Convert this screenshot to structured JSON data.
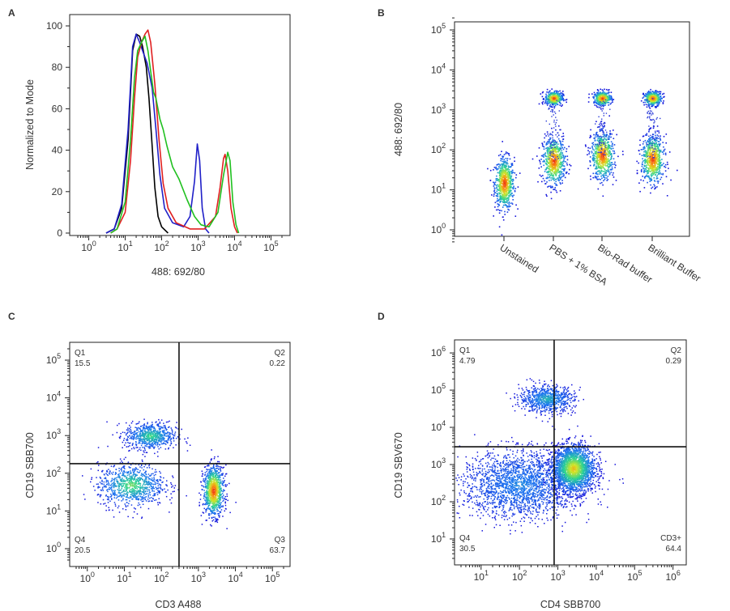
{
  "panel_labels": {
    "a": "A",
    "b": "B",
    "c": "C",
    "d": "D"
  },
  "chart_data": [
    {
      "panel": "A",
      "type": "line",
      "xlabel": "488: 692/80",
      "ylabel": "Normalized to Mode",
      "xscale": "log",
      "xlim": [
        0.5,
        200000
      ],
      "ylim": [
        0,
        100
      ],
      "y_ticks": [
        "0",
        "20",
        "40",
        "60",
        "80",
        "100"
      ],
      "x_ticks": [
        "10^0",
        "10^1",
        "10^2",
        "10^3",
        "10^4",
        "10^5"
      ],
      "grid": false,
      "legend": "none",
      "series": [
        {
          "color": "#000000",
          "points": [
            [
              3,
              0
            ],
            [
              5,
              2
            ],
            [
              8,
              12
            ],
            [
              12,
              45
            ],
            [
              16,
              88
            ],
            [
              20,
              96
            ],
            [
              25,
              95
            ],
            [
              30,
              90
            ],
            [
              38,
              80
            ],
            [
              45,
              65
            ],
            [
              55,
              42
            ],
            [
              65,
              22
            ],
            [
              80,
              8
            ],
            [
              100,
              3
            ],
            [
              150,
              0
            ]
          ]
        },
        {
          "color": "#2020c8",
          "points": [
            [
              3,
              0
            ],
            [
              5,
              2
            ],
            [
              8,
              14
            ],
            [
              12,
              50
            ],
            [
              16,
              90
            ],
            [
              20,
              96
            ],
            [
              25,
              92
            ],
            [
              30,
              88
            ],
            [
              40,
              82
            ],
            [
              55,
              70
            ],
            [
              70,
              50
            ],
            [
              90,
              28
            ],
            [
              120,
              12
            ],
            [
              200,
              5
            ],
            [
              400,
              3
            ],
            [
              600,
              8
            ],
            [
              800,
              25
            ],
            [
              950,
              43
            ],
            [
              1100,
              35
            ],
            [
              1300,
              12
            ],
            [
              1600,
              2
            ],
            [
              2000,
              0
            ]
          ]
        },
        {
          "color": "#e02020",
          "points": [
            [
              4,
              0
            ],
            [
              6,
              2
            ],
            [
              10,
              10
            ],
            [
              14,
              35
            ],
            [
              18,
              65
            ],
            [
              22,
              85
            ],
            [
              28,
              92
            ],
            [
              35,
              96
            ],
            [
              42,
              98
            ],
            [
              50,
              92
            ],
            [
              65,
              72
            ],
            [
              85,
              45
            ],
            [
              110,
              24
            ],
            [
              150,
              12
            ],
            [
              250,
              5
            ],
            [
              600,
              2
            ],
            [
              1500,
              2
            ],
            [
              3000,
              8
            ],
            [
              4000,
              22
            ],
            [
              5000,
              36
            ],
            [
              5500,
              38
            ],
            [
              6500,
              30
            ],
            [
              8000,
              12
            ],
            [
              10000,
              3
            ],
            [
              12000,
              0
            ]
          ]
        },
        {
          "color": "#20c020",
          "points": [
            [
              4,
              0
            ],
            [
              6,
              2
            ],
            [
              10,
              15
            ],
            [
              14,
              45
            ],
            [
              18,
              75
            ],
            [
              22,
              88
            ],
            [
              28,
              92
            ],
            [
              35,
              95
            ],
            [
              42,
              88
            ],
            [
              50,
              78
            ],
            [
              60,
              68
            ],
            [
              70,
              65
            ],
            [
              90,
              55
            ],
            [
              110,
              50
            ],
            [
              140,
              42
            ],
            [
              200,
              32
            ],
            [
              300,
              26
            ],
            [
              500,
              16
            ],
            [
              800,
              8
            ],
            [
              1200,
              4
            ],
            [
              2000,
              3
            ],
            [
              3500,
              10
            ],
            [
              5000,
              28
            ],
            [
              6500,
              39
            ],
            [
              7500,
              35
            ],
            [
              9000,
              15
            ],
            [
              11000,
              4
            ],
            [
              13000,
              0
            ]
          ]
        }
      ]
    },
    {
      "panel": "B",
      "type": "scatter",
      "ylabel": "488: 692/80",
      "yscale": "log",
      "ylim": [
        0.5,
        200000
      ],
      "y_ticks": [
        "10^0",
        "10^1",
        "10^2",
        "10^3",
        "10^4",
        "10^5"
      ],
      "categories": [
        "Unstained",
        "PBS + 1% BSA",
        "Bio-Rad buffer",
        "Brilliant Buffer"
      ],
      "populations": [
        {
          "category": "Unstained",
          "center": 15
        },
        {
          "category": "PBS + 1% BSA",
          "centers": [
            55,
            2000
          ]
        },
        {
          "category": "Bio-Rad buffer",
          "centers": [
            75,
            2000
          ]
        },
        {
          "category": "Brilliant Buffer",
          "centers": [
            60,
            2000
          ]
        }
      ]
    },
    {
      "panel": "C",
      "type": "scatter",
      "xlabel": "CD3 A488",
      "ylabel": "CD19 SBB700",
      "xscale": "log",
      "yscale": "log",
      "xlim": [
        0.5,
        200000
      ],
      "ylim": [
        0.5,
        200000
      ],
      "x_ticks": [
        "10^0",
        "10^1",
        "10^2",
        "10^3",
        "10^4",
        "10^5"
      ],
      "y_ticks": [
        "10^0",
        "10^1",
        "10^2",
        "10^3",
        "10^4",
        "10^5"
      ],
      "gates": {
        "x": 300,
        "y": 180
      },
      "quadrants": [
        {
          "name": "Q1",
          "value": "15.5"
        },
        {
          "name": "Q2",
          "value": "0.22"
        },
        {
          "name": "Q3",
          "value": "63.7"
        },
        {
          "name": "Q4",
          "value": "20.5"
        }
      ],
      "populations": [
        {
          "center": [
            50,
            1000
          ]
        },
        {
          "center": [
            15,
            50
          ]
        },
        {
          "center": [
            2500,
            35
          ]
        }
      ]
    },
    {
      "panel": "D",
      "type": "scatter",
      "xlabel": "CD4 SBB700",
      "ylabel": "CD19 SBV670",
      "xscale": "log",
      "yscale": "log",
      "xlim": [
        3,
        1500000
      ],
      "ylim": [
        3,
        1500000
      ],
      "x_ticks": [
        "10^1",
        "10^2",
        "10^3",
        "10^4",
        "10^5",
        "10^6"
      ],
      "y_ticks": [
        "10^1",
        "10^2",
        "10^3",
        "10^4",
        "10^5",
        "10^6"
      ],
      "gates": {
        "x": 800,
        "y": 3000
      },
      "quadrants": [
        {
          "name": "Q1",
          "value": "4.79"
        },
        {
          "name": "Q2",
          "value": "0.29"
        },
        {
          "name": "CD3+",
          "value": "64.4"
        },
        {
          "name": "Q4",
          "value": "30.5"
        }
      ],
      "populations": [
        {
          "center": [
            500,
            60000
          ]
        },
        {
          "center": [
            2500,
            800
          ]
        },
        {
          "center": [
            100,
            300
          ]
        }
      ]
    }
  ]
}
